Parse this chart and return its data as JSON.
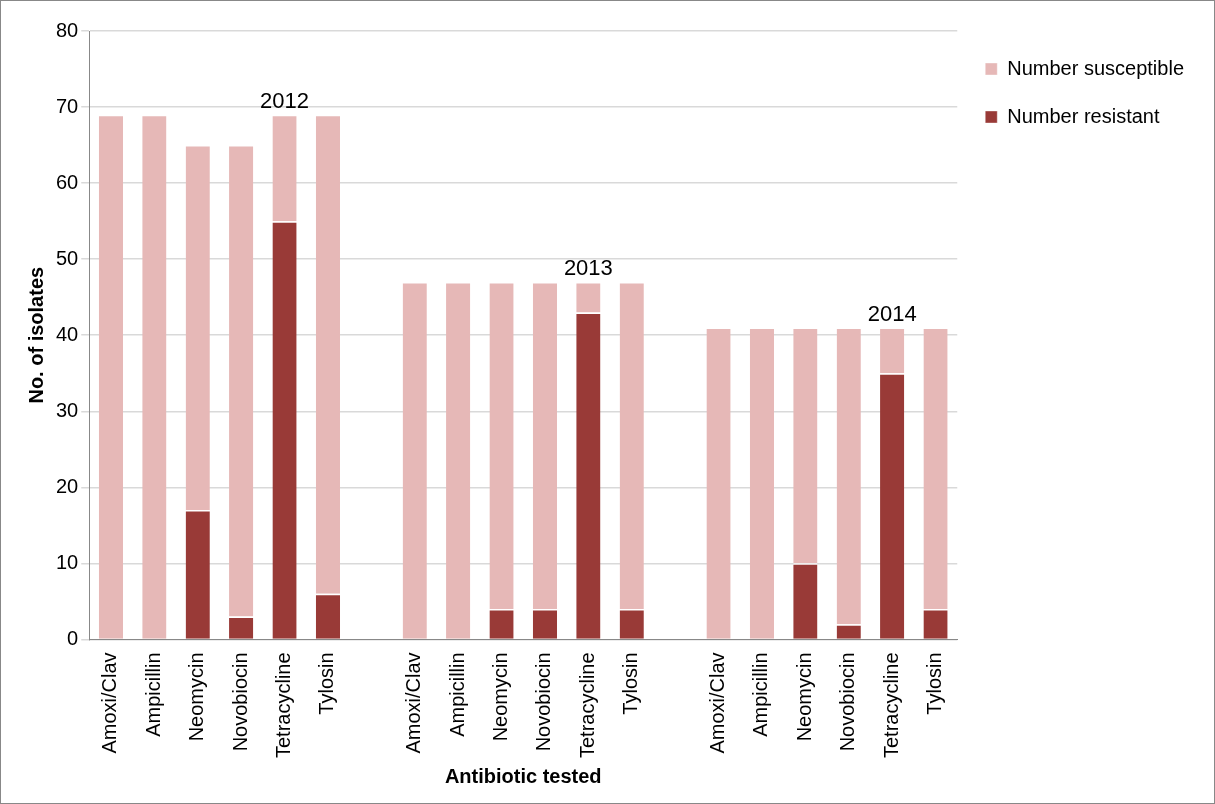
{
  "chart_data": {
    "type": "bar",
    "stacked": true,
    "xlabel": "Antibiotic tested",
    "ylabel": "No. of isolates",
    "categories": [
      "Amoxi/Clav",
      "Ampicillin",
      "Neomycin",
      "Novobiocin",
      "Tetracycline",
      "Tylosin",
      null,
      "Amoxi/Clav",
      "Ampicillin",
      "Neomycin",
      "Novobiocin",
      "Tetracycline",
      "Tylosin",
      null,
      "Amoxi/Clav",
      "Ampicillin",
      "Neomycin",
      "Novobiocin",
      "Tetracycline",
      "Tylosin"
    ],
    "series": [
      {
        "name": "Number resistant",
        "color": "#993a37",
        "values": [
          0,
          0,
          17,
          3,
          55,
          6,
          null,
          0,
          0,
          4,
          4,
          43,
          4,
          null,
          0,
          0,
          10,
          2,
          35,
          4
        ]
      },
      {
        "name": "Number susceptible",
        "color": "#e6b8b7",
        "values": [
          69,
          69,
          48,
          62,
          14,
          63,
          null,
          47,
          47,
          43,
          43,
          4,
          43,
          null,
          41,
          41,
          31,
          39,
          6,
          37
        ]
      }
    ],
    "ylim": [
      0,
      80
    ],
    "yticks": [
      0,
      10,
      20,
      30,
      40,
      50,
      60,
      70,
      80
    ],
    "grid": "y",
    "legend": "top right",
    "annotations": [
      "2012",
      "2013",
      "2014"
    ]
  }
}
